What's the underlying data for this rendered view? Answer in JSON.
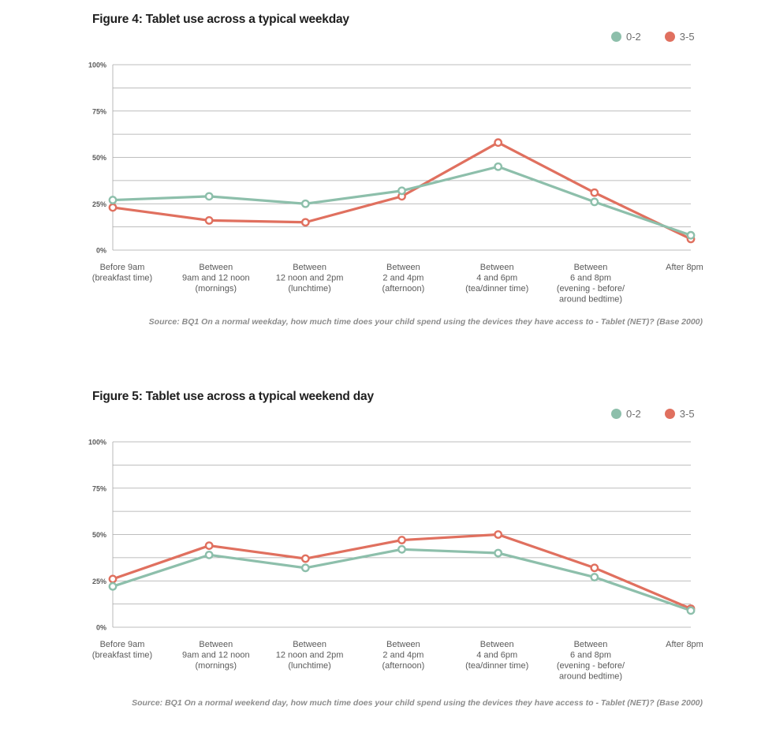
{
  "colors": {
    "series_0_2": "#8dbfab",
    "series_3_5": "#e0705f",
    "grid": "#a8a8a8",
    "text": "#5a5a5a"
  },
  "chart_data": [
    {
      "type": "line",
      "title": "Figure 4: Tablet use across a typical weekday",
      "categories": [
        [
          "Before 9am",
          "(breakfast time)"
        ],
        [
          "Between",
          "9am and 12 noon",
          "(mornings)"
        ],
        [
          "Between",
          "12 noon and 2pm",
          "(lunchtime)"
        ],
        [
          "Between",
          "2 and 4pm",
          "(afternoon)"
        ],
        [
          "Between",
          "4 and 6pm",
          "(tea/dinner time)"
        ],
        [
          "Between",
          "6 and 8pm",
          "(evening - before/",
          "around bedtime)"
        ],
        [
          "After 8pm"
        ]
      ],
      "series": [
        {
          "name": "0-2",
          "values": [
            27,
            29,
            25,
            32,
            45,
            26,
            8
          ]
        },
        {
          "name": "3-5",
          "values": [
            23,
            16,
            15,
            29,
            58,
            31,
            6
          ]
        }
      ],
      "ylim": [
        0,
        100
      ],
      "yticks": [
        "0%",
        "25%",
        "50%",
        "75%",
        "100%"
      ],
      "grid": true,
      "legend": "top-right",
      "source": "Source: BQ1 On a normal weekday, how much time does your child spend using the devices they have access to - Tablet (NET)? (Base 2000)"
    },
    {
      "type": "line",
      "title": "Figure 5: Tablet use across a typical weekend day",
      "categories": [
        [
          "Before 9am",
          "(breakfast time)"
        ],
        [
          "Between",
          "9am and 12 noon",
          "(mornings)"
        ],
        [
          "Between",
          "12 noon and 2pm",
          "(lunchtime)"
        ],
        [
          "Between",
          "2 and 4pm",
          "(afternoon)"
        ],
        [
          "Between",
          "4 and 6pm",
          "(tea/dinner time)"
        ],
        [
          "Between",
          "6 and 8pm",
          "(evening - before/",
          "around bedtime)"
        ],
        [
          "After 8pm"
        ]
      ],
      "series": [
        {
          "name": "0-2",
          "values": [
            22,
            39,
            32,
            42,
            40,
            27,
            9
          ]
        },
        {
          "name": "3-5",
          "values": [
            26,
            44,
            37,
            47,
            50,
            32,
            10
          ]
        }
      ],
      "ylim": [
        0,
        100
      ],
      "yticks": [
        "0%",
        "25%",
        "50%",
        "75%",
        "100%"
      ],
      "grid": true,
      "legend": "top-right",
      "source": "Source: BQ1 On a normal weekend day, how much time does your child spend using the devices they have access to - Tablet (NET)? (Base 2000)"
    }
  ]
}
